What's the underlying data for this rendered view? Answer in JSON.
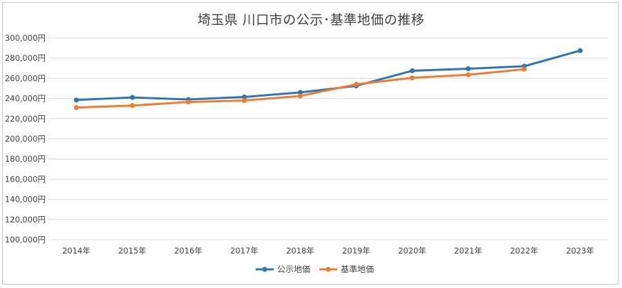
{
  "chart_data": {
    "type": "line",
    "title": "埼玉県 川口市の公示･基準地価の推移",
    "categories": [
      "2014年",
      "2015年",
      "2016年",
      "2017年",
      "2018年",
      "2019年",
      "2020年",
      "2021年",
      "2022年",
      "2023年"
    ],
    "y_ticks": [
      "100,000円",
      "120,000円",
      "140,000円",
      "160,000円",
      "180,000円",
      "200,000円",
      "220,000円",
      "240,000円",
      "260,000円",
      "280,000円",
      "300,000円"
    ],
    "ylim": [
      100000,
      300000
    ],
    "grid": true,
    "legend_position": "bottom",
    "series": [
      {
        "name": "公示地価",
        "color": "#2e75b6",
        "values": [
          238500,
          241000,
          239000,
          241500,
          246000,
          252500,
          267500,
          269500,
          272000,
          287500
        ]
      },
      {
        "name": "基準地価",
        "color": "#ed7d31",
        "values": [
          231000,
          233000,
          236500,
          238000,
          242500,
          254000,
          260500,
          263500,
          269000,
          null
        ]
      }
    ]
  }
}
